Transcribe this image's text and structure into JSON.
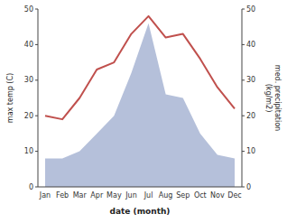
{
  "chart_data": {
    "type": "combo",
    "categories": [
      "Jan",
      "Feb",
      "Mar",
      "Apr",
      "May",
      "Jun",
      "Jul",
      "Aug",
      "Sep",
      "Oct",
      "Nov",
      "Dec"
    ],
    "series": [
      {
        "type": "area",
        "color": "#adb9d6",
        "axis": "y2",
        "values": [
          8,
          8,
          10,
          15,
          20,
          32,
          46,
          26,
          25,
          15,
          9,
          8
        ]
      },
      {
        "type": "line",
        "color": "#c0504d",
        "values": [
          20,
          19,
          25,
          33,
          35,
          43,
          48,
          42,
          43,
          36,
          28,
          22
        ]
      }
    ],
    "x_label": "date (month)",
    "y_label": "max temp (C)",
    "y2_label": "med. precipitation\n(kg/m2)",
    "ylim": [
      0,
      50
    ],
    "yticks": [
      0,
      10,
      20,
      30,
      40,
      50
    ],
    "y2lim": [
      0,
      50
    ],
    "y2ticks": [
      0,
      10,
      20,
      30,
      40,
      50
    ],
    "grid": false
  }
}
